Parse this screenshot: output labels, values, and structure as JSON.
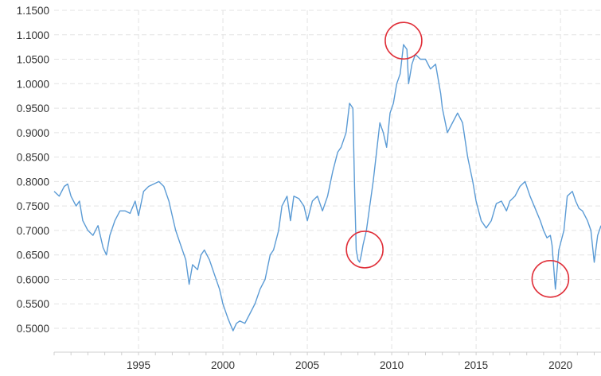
{
  "chart_data": {
    "type": "line",
    "title": "",
    "xlabel": "",
    "ylabel": "",
    "xlim": [
      1990.0,
      2022.4
    ],
    "ylim": [
      0.47,
      1.15
    ],
    "grid": true,
    "legend": "none",
    "line_color": "#5b9bd5",
    "annotation_color": "#e0303a",
    "y_ticks": [
      "1.1500",
      "1.1000",
      "1.0500",
      "1.0000",
      "0.9500",
      "0.9000",
      "0.8500",
      "0.8000",
      "0.7500",
      "0.7000",
      "0.6500",
      "0.6000",
      "0.5500",
      "0.5000"
    ],
    "y_tick_values": [
      1.15,
      1.1,
      1.05,
      1.0,
      0.95,
      0.9,
      0.85,
      0.8,
      0.75,
      0.7,
      0.65,
      0.6,
      0.55,
      0.5
    ],
    "x_ticks": [
      "1995",
      "2000",
      "2005",
      "2010",
      "2015",
      "2020"
    ],
    "x_tick_values": [
      1995,
      2000,
      2005,
      2010,
      2015,
      2020
    ],
    "series": [
      {
        "x": [
          1990.0,
          1990.3,
          1990.6,
          1990.8,
          1991.0,
          1991.3,
          1991.5,
          1991.7,
          1992.0,
          1992.3,
          1992.6,
          1992.9,
          1993.1,
          1993.3,
          1993.6,
          1993.9,
          1994.2,
          1994.5,
          1994.8,
          1995.0,
          1995.3,
          1995.6,
          1995.9,
          1996.2,
          1996.5,
          1996.8,
          1997.0,
          1997.2,
          1997.5,
          1997.8,
          1998.0,
          1998.2,
          1998.5,
          1998.7,
          1998.9,
          1999.2,
          1999.5,
          1999.8,
          2000.0,
          2000.3,
          2000.6,
          2000.8,
          2001.0,
          2001.3,
          2001.6,
          2001.9,
          2002.2,
          2002.5,
          2002.8,
          2003.0,
          2003.3,
          2003.5,
          2003.8,
          2004.0,
          2004.2,
          2004.5,
          2004.8,
          2005.0,
          2005.3,
          2005.6,
          2005.9,
          2006.2,
          2006.5,
          2006.8,
          2007.0,
          2007.3,
          2007.5,
          2007.7,
          2007.8,
          2007.9,
          2008.0,
          2008.1,
          2008.2,
          2008.3,
          2008.5,
          2008.7,
          2008.9,
          2009.1,
          2009.3,
          2009.5,
          2009.7,
          2009.9,
          2010.1,
          2010.3,
          2010.5,
          2010.7,
          2010.9,
          2011.0,
          2011.2,
          2011.4,
          2011.7,
          2012.0,
          2012.3,
          2012.6,
          2012.9,
          2013.0,
          2013.3,
          2013.6,
          2013.9,
          2014.2,
          2014.5,
          2014.8,
          2015.0,
          2015.3,
          2015.6,
          2015.9,
          2016.2,
          2016.5,
          2016.8,
          2017.0,
          2017.3,
          2017.6,
          2017.9,
          2018.2,
          2018.5,
          2018.8,
          2019.0,
          2019.2,
          2019.4,
          2019.5,
          2019.7,
          2019.9,
          2020.2,
          2020.4,
          2020.7,
          2020.9,
          2021.1,
          2021.3,
          2021.6,
          2021.8,
          2022.0,
          2022.2,
          2022.4
        ],
        "values": [
          0.78,
          0.77,
          0.79,
          0.795,
          0.77,
          0.75,
          0.76,
          0.72,
          0.7,
          0.69,
          0.71,
          0.665,
          0.65,
          0.69,
          0.72,
          0.74,
          0.74,
          0.735,
          0.76,
          0.73,
          0.78,
          0.79,
          0.795,
          0.8,
          0.79,
          0.76,
          0.73,
          0.7,
          0.67,
          0.64,
          0.59,
          0.63,
          0.62,
          0.65,
          0.66,
          0.64,
          0.61,
          0.58,
          0.55,
          0.52,
          0.495,
          0.51,
          0.515,
          0.51,
          0.53,
          0.55,
          0.58,
          0.6,
          0.65,
          0.66,
          0.7,
          0.75,
          0.77,
          0.72,
          0.77,
          0.765,
          0.75,
          0.72,
          0.76,
          0.77,
          0.74,
          0.77,
          0.82,
          0.86,
          0.87,
          0.9,
          0.96,
          0.95,
          0.79,
          0.66,
          0.64,
          0.635,
          0.65,
          0.67,
          0.7,
          0.75,
          0.8,
          0.86,
          0.92,
          0.9,
          0.87,
          0.94,
          0.96,
          1.0,
          1.02,
          1.08,
          1.07,
          1.0,
          1.04,
          1.06,
          1.05,
          1.05,
          1.03,
          1.04,
          0.98,
          0.95,
          0.9,
          0.92,
          0.94,
          0.92,
          0.85,
          0.8,
          0.76,
          0.72,
          0.705,
          0.72,
          0.755,
          0.76,
          0.74,
          0.76,
          0.77,
          0.79,
          0.8,
          0.77,
          0.745,
          0.72,
          0.7,
          0.685,
          0.69,
          0.67,
          0.58,
          0.66,
          0.7,
          0.77,
          0.78,
          0.76,
          0.745,
          0.74,
          0.72,
          0.7,
          0.635,
          0.69,
          0.71
        ]
      }
    ],
    "annotations": [
      {
        "shape": "circle",
        "x": 2010.7,
        "y": 1.088
      },
      {
        "shape": "circle",
        "x": 2008.4,
        "y": 0.661
      },
      {
        "shape": "circle",
        "x": 2019.4,
        "y": 0.601
      }
    ]
  }
}
